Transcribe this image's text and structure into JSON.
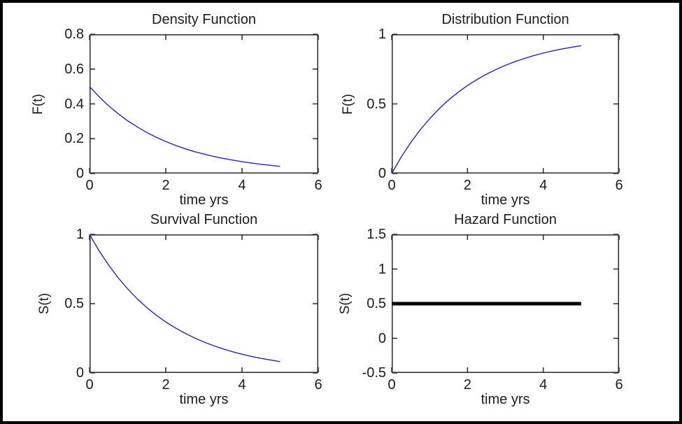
{
  "figure": {
    "background": "#ffffff",
    "frame_color": "#000000",
    "axes_color": "#2a2a2a",
    "text_color": "#1c1c1c"
  },
  "chart_data": [
    {
      "id": "density",
      "type": "line",
      "title": "Density Function",
      "xlabel": "time yrs",
      "ylabel": "F(t)",
      "xlim": [
        0,
        6
      ],
      "ylim": [
        0,
        0.8
      ],
      "xticks": [
        0,
        2,
        4,
        6
      ],
      "yticks": [
        0,
        0.2,
        0.4,
        0.6,
        0.8
      ],
      "grid": false,
      "box": true,
      "legend": null,
      "line_color": "#2424c8",
      "line_width": 1.4,
      "x": [
        0,
        0.25,
        0.5,
        0.75,
        1,
        1.25,
        1.5,
        1.75,
        2,
        2.25,
        2.5,
        2.75,
        3,
        3.25,
        3.5,
        3.75,
        4,
        4.25,
        4.5,
        4.75,
        5
      ],
      "y": [
        0.5,
        0.441,
        0.389,
        0.344,
        0.303,
        0.268,
        0.236,
        0.208,
        0.184,
        0.162,
        0.143,
        0.126,
        0.112,
        0.098,
        0.087,
        0.077,
        0.068,
        0.06,
        0.053,
        0.047,
        0.041
      ]
    },
    {
      "id": "distribution",
      "type": "line",
      "title": "Distribution Function",
      "xlabel": "time yrs",
      "ylabel": "F(t)",
      "xlim": [
        0,
        6
      ],
      "ylim": [
        0,
        1
      ],
      "xticks": [
        0,
        2,
        4,
        6
      ],
      "yticks": [
        0,
        0.5,
        1
      ],
      "grid": false,
      "box": true,
      "legend": null,
      "line_color": "#2424c8",
      "line_width": 1.4,
      "x": [
        0,
        0.25,
        0.5,
        0.75,
        1,
        1.25,
        1.5,
        1.75,
        2,
        2.25,
        2.5,
        2.75,
        3,
        3.25,
        3.5,
        3.75,
        4,
        4.25,
        4.5,
        4.75,
        5
      ],
      "y": [
        0,
        0.118,
        0.221,
        0.313,
        0.393,
        0.465,
        0.528,
        0.583,
        0.632,
        0.675,
        0.713,
        0.747,
        0.777,
        0.803,
        0.826,
        0.847,
        0.865,
        0.881,
        0.895,
        0.907,
        0.918
      ]
    },
    {
      "id": "survival",
      "type": "line",
      "title": "Survival Function",
      "xlabel": "time yrs",
      "ylabel": "S(t)",
      "xlim": [
        0,
        6
      ],
      "ylim": [
        0,
        1
      ],
      "xticks": [
        0,
        2,
        4,
        6
      ],
      "yticks": [
        0,
        0.5,
        1
      ],
      "grid": false,
      "box": true,
      "legend": null,
      "line_color": "#2424c8",
      "line_width": 1.4,
      "x": [
        0,
        0.25,
        0.5,
        0.75,
        1,
        1.25,
        1.5,
        1.75,
        2,
        2.25,
        2.5,
        2.75,
        3,
        3.25,
        3.5,
        3.75,
        4,
        4.25,
        4.5,
        4.75,
        5
      ],
      "y": [
        1,
        0.882,
        0.779,
        0.687,
        0.607,
        0.535,
        0.472,
        0.417,
        0.368,
        0.325,
        0.287,
        0.253,
        0.223,
        0.197,
        0.174,
        0.153,
        0.135,
        0.119,
        0.105,
        0.093,
        0.082
      ]
    },
    {
      "id": "hazard",
      "type": "line",
      "title": "Hazard Function",
      "xlabel": "time yrs",
      "ylabel": "S(t)",
      "xlim": [
        0,
        6
      ],
      "ylim": [
        -0.5,
        1.5
      ],
      "xticks": [
        0,
        2,
        4,
        6
      ],
      "yticks": [
        -0.5,
        0,
        0.5,
        1,
        1.5
      ],
      "grid": false,
      "box": true,
      "legend": null,
      "line_color": "#000000",
      "line_width": 5,
      "x": [
        0,
        5
      ],
      "y": [
        0.5,
        0.5
      ]
    }
  ]
}
